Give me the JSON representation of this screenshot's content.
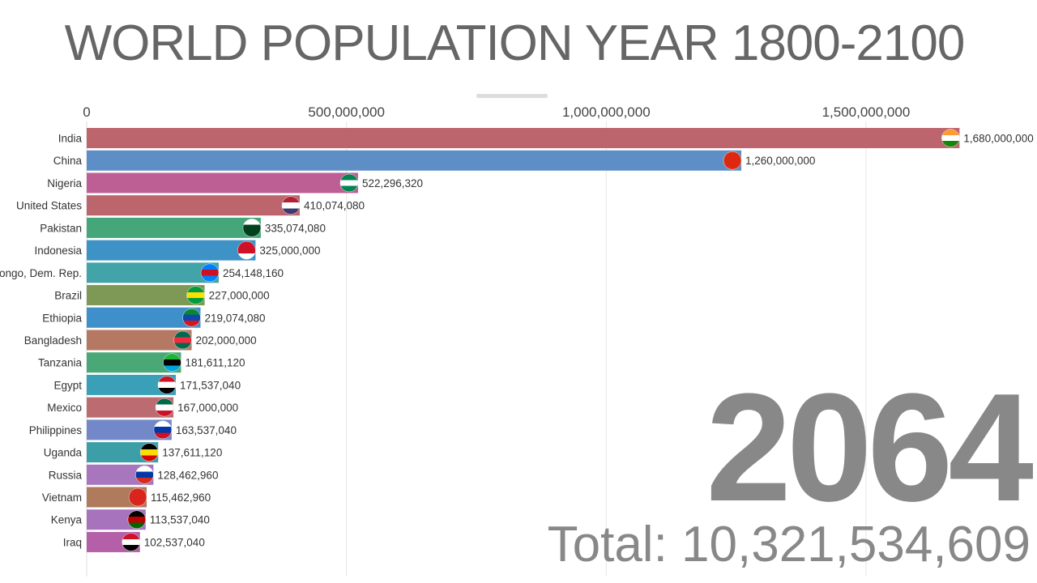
{
  "title": "WORLD POPULATION YEAR 1800-2100",
  "year": "2064",
  "total_label": "Total: 10,321,534,609",
  "chart_data": {
    "type": "bar",
    "orientation": "horizontal",
    "xlim": [
      0,
      1800000000
    ],
    "grid": true,
    "xticks": [
      {
        "value": 0,
        "label": "0"
      },
      {
        "value": 500000000,
        "label": "500,000,000"
      },
      {
        "value": 1000000000,
        "label": "1,000,000,000"
      },
      {
        "value": 1500000000,
        "label": "1,500,000,000"
      }
    ],
    "categories": [
      "India",
      "China",
      "Nigeria",
      "United States",
      "Pakistan",
      "Indonesia",
      "ongo, Dem. Rep.",
      "Brazil",
      "Ethiopia",
      "Bangladesh",
      "Tanzania",
      "Egypt",
      "Mexico",
      "Philippines",
      "Uganda",
      "Russia",
      "Vietnam",
      "Kenya",
      "Iraq"
    ],
    "values": [
      1680000000,
      1260000000,
      522296320,
      410074080,
      335074080,
      325000000,
      254148160,
      227000000,
      219074080,
      202000000,
      181611120,
      171537040,
      167000000,
      163537040,
      137611120,
      128462960,
      115462960,
      113537040,
      102537040
    ],
    "labels": [
      "1,680,000,000",
      "1,260,000,000",
      "522,296,320",
      "410,074,080",
      "335,074,080",
      "325,000,000",
      "254,148,160",
      "227,000,000",
      "219,074,080",
      "202,000,000",
      "181,611,120",
      "171,537,040",
      "167,000,000",
      "163,537,040",
      "137,611,120",
      "128,462,960",
      "115,462,960",
      "113,537,040",
      "102,537,040"
    ],
    "colors": [
      "#bc656c",
      "#5d8fc6",
      "#bd5f95",
      "#bc656c",
      "#45a67a",
      "#3d92c6",
      "#42a3a8",
      "#7e9955",
      "#3e8fca",
      "#b57863",
      "#4aa877",
      "#3aa0b8",
      "#bc6b70",
      "#7388c9",
      "#3c9fa8",
      "#a876bd",
      "#b07a5d",
      "#a873bd",
      "#b55fa8"
    ],
    "flags": [
      [
        "#ff9933",
        "#ffffff",
        "#138808"
      ],
      [
        "#de2910",
        "#de2910",
        "#de2910"
      ],
      [
        "#008751",
        "#ffffff",
        "#008751"
      ],
      [
        "#b22234",
        "#ffffff",
        "#3c3b6e"
      ],
      [
        "#ffffff",
        "#01411c",
        "#01411c"
      ],
      [
        "#ce1126",
        "#ce1126",
        "#ffffff"
      ],
      [
        "#007fff",
        "#ce1021",
        "#007fff"
      ],
      [
        "#009c3b",
        "#ffdf00",
        "#009c3b"
      ],
      [
        "#078930",
        "#0f47af",
        "#da121a"
      ],
      [
        "#006a4e",
        "#f42a41",
        "#006a4e"
      ],
      [
        "#1eb53a",
        "#000000",
        "#00a3dd"
      ],
      [
        "#ce1126",
        "#ffffff",
        "#000000"
      ],
      [
        "#006847",
        "#ffffff",
        "#ce1126"
      ],
      [
        "#ffffff",
        "#0038a8",
        "#ce1126"
      ],
      [
        "#000000",
        "#fcdc04",
        "#d90000"
      ],
      [
        "#ffffff",
        "#0039a6",
        "#d52b1e"
      ],
      [
        "#da251d",
        "#da251d",
        "#da251d"
      ],
      [
        "#000000",
        "#bb0000",
        "#006600"
      ],
      [
        "#ce1126",
        "#ffffff",
        "#000000"
      ]
    ]
  }
}
